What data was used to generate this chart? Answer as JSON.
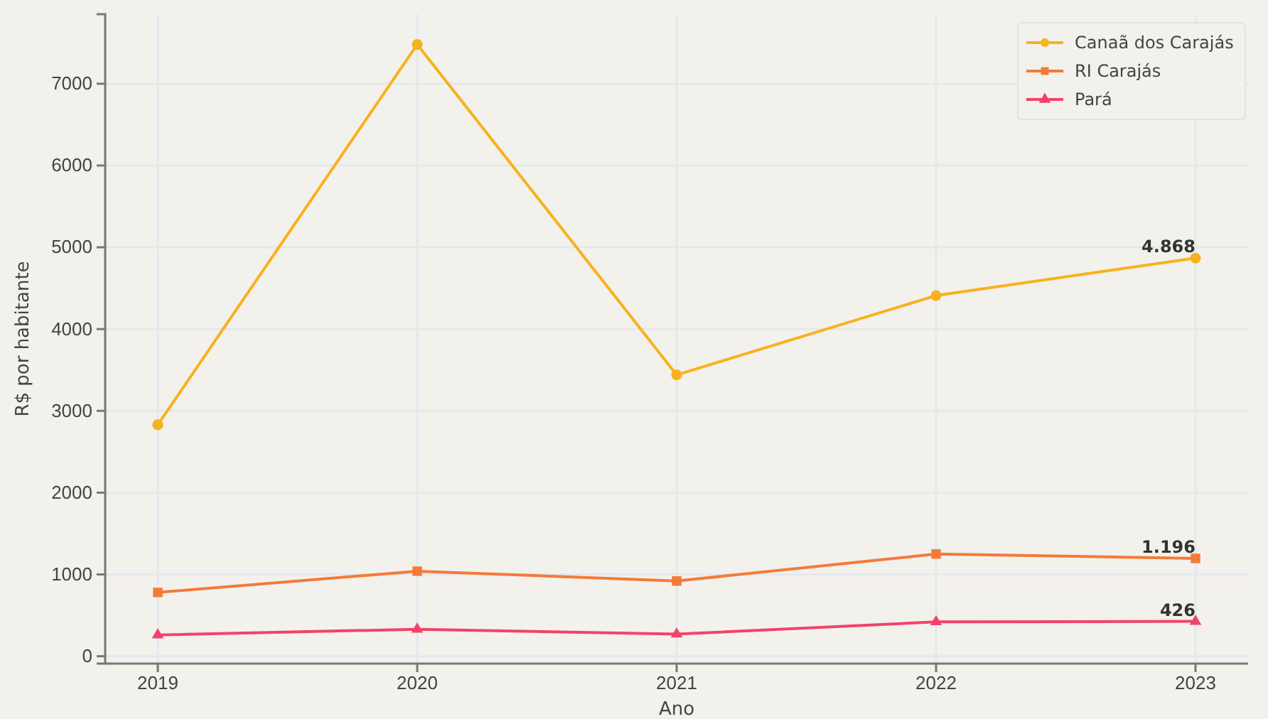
{
  "chart_data": {
    "type": "line",
    "xlabel": "Ano",
    "ylabel": "R$ por habitante",
    "categories": [
      "2019",
      "2020",
      "2021",
      "2022",
      "2023"
    ],
    "ylim": [
      -90,
      7850
    ],
    "yticks": [
      0,
      1000,
      2000,
      3000,
      4000,
      5000,
      6000,
      7000
    ],
    "grid": true,
    "legend": "top right",
    "series": [
      {
        "name": "Canaã dos Carajás",
        "color": "#f7b21e",
        "marker": "circle",
        "values": [
          2830,
          7480,
          3440,
          4410,
          4868
        ],
        "value_labels": [
          null,
          null,
          null,
          null,
          "4.868"
        ]
      },
      {
        "name": "RI Carajás",
        "color": "#f47a3a",
        "marker": "square",
        "values": [
          780,
          1040,
          920,
          1250,
          1196
        ],
        "value_labels": [
          null,
          null,
          null,
          null,
          "1.196"
        ]
      },
      {
        "name": "Pará",
        "color": "#f2436b",
        "marker": "triangle",
        "values": [
          260,
          330,
          270,
          420,
          426
        ],
        "value_labels": [
          null,
          null,
          null,
          null,
          "426"
        ]
      }
    ]
  }
}
